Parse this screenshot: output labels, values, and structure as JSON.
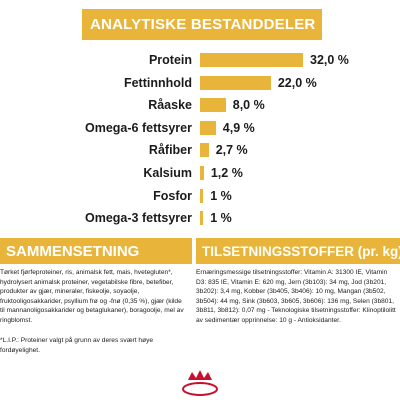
{
  "chart_data": {
    "type": "bar",
    "orientation": "horizontal",
    "title": "ANALYTISKE BESTANDDELER",
    "categories": [
      "Protein",
      "Fettinnhold",
      "Råaske",
      "Omega-6 fettsyrer",
      "Råfiber",
      "Kalsium",
      "Fosfor",
      "Omega-3 fettsyrer"
    ],
    "values": [
      32.0,
      22.0,
      8.0,
      4.9,
      2.7,
      1.2,
      1,
      1
    ],
    "value_labels": [
      "32,0 %",
      "22,0 %",
      "8,0 %",
      "4,9 %",
      "2,7 %",
      "1,2 %",
      "1 %",
      "1 %"
    ],
    "color": "#e8b53a"
  },
  "composition": {
    "title": "SAMMENSETNING",
    "text": "Tørket fjørfeproteiner, ris, animalsk fett, mais, hvetegluten*, hydrolysert animalsk proteiner, vegetabilske fibre, betefiber, produkter av gjær, mineraler, fiskeolje, soyaolje, fruktooligosakkarider, psyllium frø og -fnø (0,35 %), gjær (kilde til mannanoligosakkarider og betaglukaner), boragoolje, mel av ringblomst.",
    "note": "*L.I.P.: Proteiner valgt på grunn av deres svært høye fordøyelighet."
  },
  "additives": {
    "title": "TILSETNINGSSTOFFER (pr. kg)",
    "text": "Ernæringsmessige tilsetningsstoffer: Vitamin A: 31300 IE, Vitamin D3: 835 IE, Vitamin E: 620 mg, Jern (3b103): 34 mg, Jod (3b201, 3b202): 3,4 mg, Kobber (3b405, 3b406): 10 mg, Mangan (3b502, 3b504): 44 mg, Sink (3b603, 3b605, 3b606): 136 mg, Selen (3b801, 3b811, 3b812): 0,07 mg - Teknologiske tilsetningsstoffer: Klinoptilolitt av sedimentær opprinnelse: 10 g - Antioksidanter."
  }
}
